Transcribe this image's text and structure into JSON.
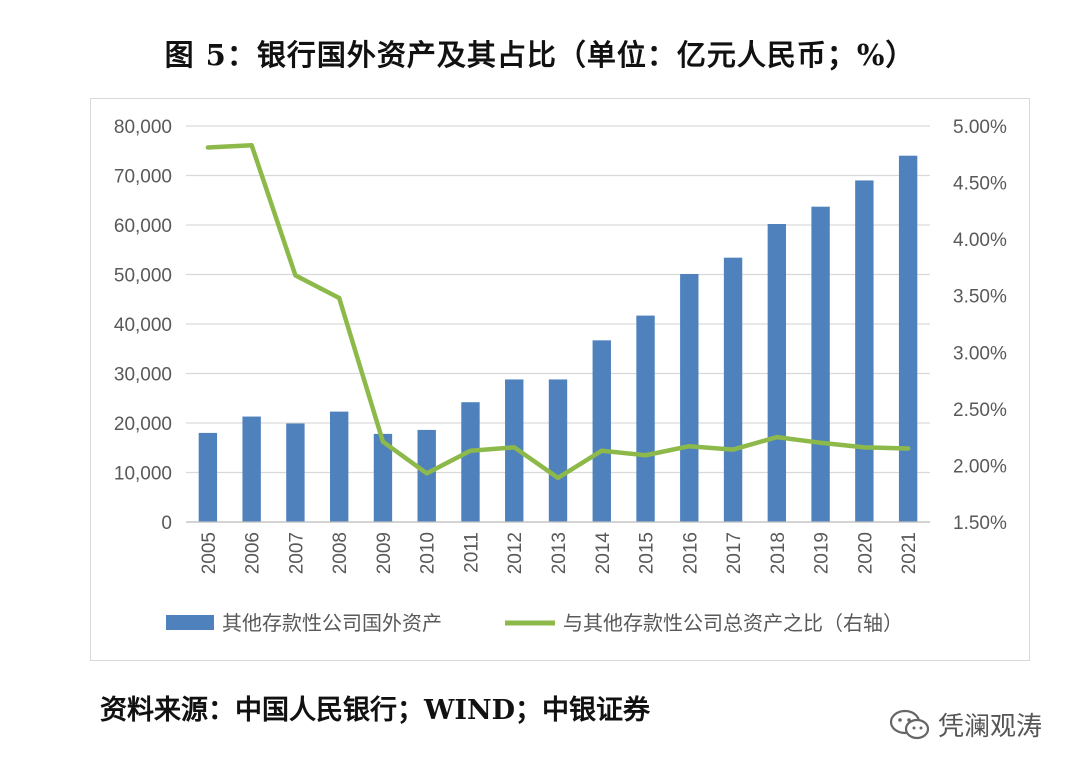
{
  "title": "图 5：银行国外资产及其占比（单位：亿元人民币；%）",
  "source": "资料来源：中国人民银行；WIND；中银证券",
  "watermark": "凭澜观涛",
  "chart_data": {
    "type": "bar+line",
    "categories": [
      "2005",
      "2006",
      "2007",
      "2008",
      "2009",
      "2010",
      "2011",
      "2012",
      "2013",
      "2014",
      "2015",
      "2016",
      "2017",
      "2018",
      "2019",
      "2020",
      "2021"
    ],
    "series": [
      {
        "name": "其他存款性公司国外资产",
        "type": "bar",
        "axis": "left",
        "color": "#4f81bd",
        "values": [
          18000,
          21300,
          19900,
          22300,
          17800,
          18600,
          24200,
          28800,
          28800,
          36700,
          41700,
          50100,
          53400,
          60200,
          63700,
          69000,
          74000
        ]
      },
      {
        "name": "与其他存款性公司总资产之比（右轴）",
        "type": "line",
        "axis": "right",
        "color": "#8db94a",
        "values": [
          4.81,
          4.83,
          3.68,
          3.48,
          2.21,
          1.93,
          2.13,
          2.16,
          1.89,
          2.13,
          2.09,
          2.17,
          2.14,
          2.25,
          2.2,
          2.16,
          2.15
        ]
      }
    ],
    "y_left": {
      "min": 0,
      "max": 80000,
      "step": 10000,
      "tick_labels": [
        "0",
        "10,000",
        "20,000",
        "30,000",
        "40,000",
        "50,000",
        "60,000",
        "70,000",
        "80,000"
      ]
    },
    "y_right": {
      "min": 1.5,
      "max": 5.0,
      "step": 0.5,
      "tick_labels": [
        "1.50%",
        "2.00%",
        "2.50%",
        "3.00%",
        "3.50%",
        "4.00%",
        "4.50%",
        "5.00%"
      ]
    },
    "grid": true,
    "legend_position": "bottom"
  }
}
